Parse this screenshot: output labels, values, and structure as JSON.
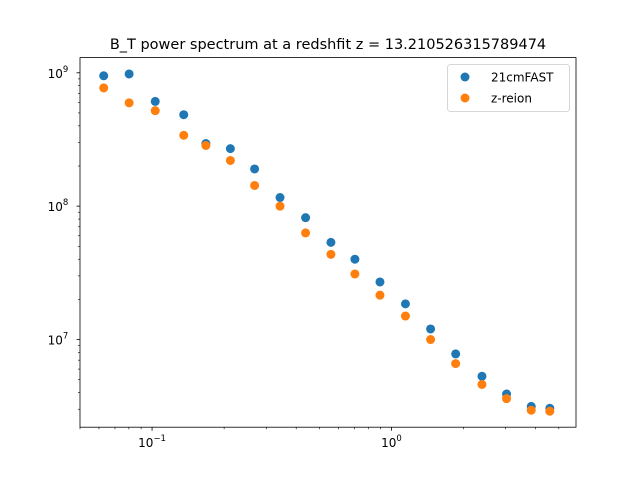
{
  "chart_data": {
    "type": "scatter",
    "title": "B_T power spectrum at a redshfit z = 13.210526315789474",
    "xlabel": "",
    "ylabel": "",
    "xscale": "log",
    "yscale": "log",
    "xlim": [
      0.05,
      5.9
    ],
    "ylim": [
      2200000.0,
      1300000000.0
    ],
    "legend_position": "top-right",
    "x_ticks": [
      {
        "value": 0.1,
        "label": "10",
        "exp": "−1"
      },
      {
        "value": 1,
        "label": "10",
        "exp": "0"
      }
    ],
    "y_ticks": [
      {
        "value": 10000000.0,
        "label": "10",
        "exp": "7"
      },
      {
        "value": 100000000.0,
        "label": "10",
        "exp": "8"
      },
      {
        "value": 1000000000.0,
        "label": "10",
        "exp": "9"
      }
    ],
    "series": [
      {
        "name": "21cmFAST",
        "color": "#1f77b4",
        "x": [
          0.0628,
          0.0802,
          0.1031,
          0.1356,
          0.1678,
          0.2124,
          0.2681,
          0.3424,
          0.4378,
          0.5586,
          0.7035,
          0.8954,
          1.144,
          1.457,
          1.854,
          2.388,
          3.025,
          3.836,
          4.586
        ],
        "y": [
          950000000.0,
          980000000.0,
          610000000.0,
          485000000.0,
          295000000.0,
          270000000.0,
          190000000.0,
          116000000.0,
          82000000.0,
          53500000.0,
          40000000.0,
          27000000.0,
          18500000.0,
          12000000.0,
          7800000.0,
          5300000.0,
          3900000.0,
          3150000.0,
          3050000.0
        ]
      },
      {
        "name": "z-reion",
        "color": "#ff7f0e",
        "x": [
          0.0628,
          0.0802,
          0.1031,
          0.1356,
          0.1678,
          0.2124,
          0.2681,
          0.3424,
          0.4378,
          0.5586,
          0.7035,
          0.8954,
          1.144,
          1.457,
          1.854,
          2.388,
          3.025,
          3.836,
          4.586
        ],
        "y": [
          770000000.0,
          595000000.0,
          520000000.0,
          340000000.0,
          285000000.0,
          220000000.0,
          143000000.0,
          100000000.0,
          63000000.0,
          43500000.0,
          31000000.0,
          21500000.0,
          15000000.0,
          10000000.0,
          6600000.0,
          4600000.0,
          3600000.0,
          2950000.0,
          2900000.0
        ]
      }
    ]
  }
}
